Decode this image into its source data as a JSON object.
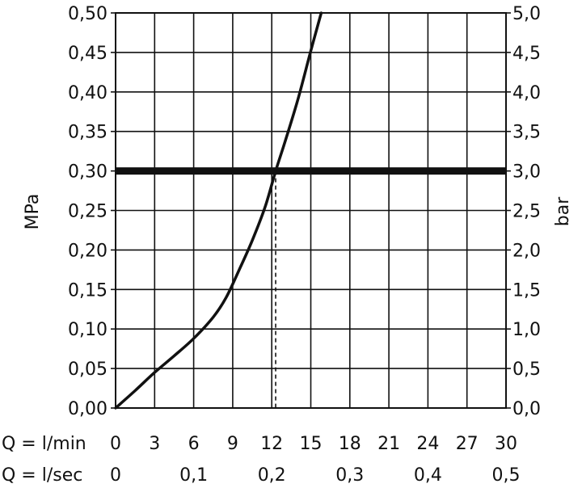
{
  "chart_data": {
    "type": "line",
    "ylabel_left": "MPa",
    "ylabel_right": "bar",
    "xaxis_lmin_label": "Q = l/min",
    "xaxis_lsec_label": "Q = l/sec",
    "xlim": [
      0,
      30
    ],
    "ylim_left": [
      0,
      0.5
    ],
    "ylim_right": [
      0,
      5
    ],
    "grid": true,
    "xticks_lmin": [
      {
        "value": 0,
        "label": "0"
      },
      {
        "value": 3,
        "label": "3"
      },
      {
        "value": 6,
        "label": "6"
      },
      {
        "value": 9,
        "label": "9"
      },
      {
        "value": 12,
        "label": "12"
      },
      {
        "value": 15,
        "label": "15"
      },
      {
        "value": 18,
        "label": "18"
      },
      {
        "value": 21,
        "label": "21"
      },
      {
        "value": 24,
        "label": "24"
      },
      {
        "value": 27,
        "label": "27"
      },
      {
        "value": 30,
        "label": "30"
      }
    ],
    "xticks_lsec": [
      {
        "value": 0,
        "label": "0"
      },
      {
        "value": 0.1,
        "label": "0,1"
      },
      {
        "value": 0.2,
        "label": "0,2"
      },
      {
        "value": 0.3,
        "label": "0,3"
      },
      {
        "value": 0.4,
        "label": "0,4"
      },
      {
        "value": 0.5,
        "label": "0,5"
      }
    ],
    "yticks_left": [
      {
        "value": 0.0,
        "label": "0,00"
      },
      {
        "value": 0.05,
        "label": "0,05"
      },
      {
        "value": 0.1,
        "label": "0,10"
      },
      {
        "value": 0.15,
        "label": "0,15"
      },
      {
        "value": 0.2,
        "label": "0,20"
      },
      {
        "value": 0.25,
        "label": "0,25"
      },
      {
        "value": 0.3,
        "label": "0,30"
      },
      {
        "value": 0.35,
        "label": "0,35"
      },
      {
        "value": 0.4,
        "label": "0,40"
      },
      {
        "value": 0.45,
        "label": "0,45"
      },
      {
        "value": 0.5,
        "label": "0,50"
      }
    ],
    "yticks_right": [
      {
        "value": 0.0,
        "label": "0,0"
      },
      {
        "value": 0.05,
        "label": "0,5"
      },
      {
        "value": 0.1,
        "label": "1,0"
      },
      {
        "value": 0.15,
        "label": "1,5"
      },
      {
        "value": 0.2,
        "label": "2,0"
      },
      {
        "value": 0.25,
        "label": "2,5"
      },
      {
        "value": 0.3,
        "label": "3,0"
      },
      {
        "value": 0.35,
        "label": "3,5"
      },
      {
        "value": 0.4,
        "label": "4,0"
      },
      {
        "value": 0.45,
        "label": "4,5"
      },
      {
        "value": 0.5,
        "label": "5,0"
      }
    ],
    "series": [
      {
        "x": [
          0,
          1.5,
          3,
          4.5,
          6,
          7.5,
          8.5,
          9.5,
          10.5,
          11.5,
          12.3,
          13,
          14,
          15,
          15.8
        ],
        "y": [
          0,
          0.022,
          0.045,
          0.066,
          0.088,
          0.115,
          0.14,
          0.175,
          0.212,
          0.255,
          0.3,
          0.336,
          0.39,
          0.452,
          0.5
        ]
      }
    ],
    "reference_line": {
      "y": 0.3
    },
    "marker_line": {
      "x": 12.3,
      "y": 0.3
    }
  }
}
